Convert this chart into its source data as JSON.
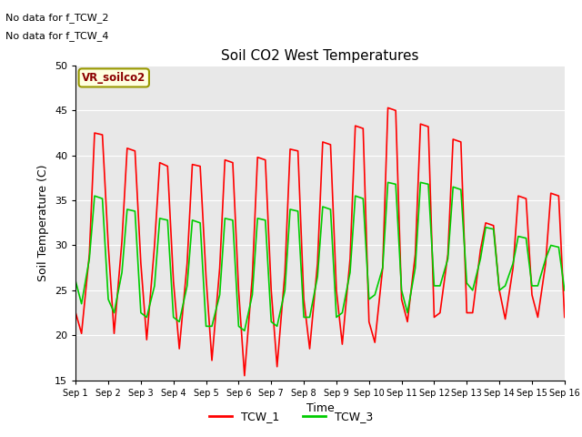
{
  "title": "Soil CO2 West Temperatures",
  "xlabel": "Time",
  "ylabel": "Soil Temperature (C)",
  "ylim": [
    15,
    50
  ],
  "xlim": [
    0,
    15
  ],
  "xtick_labels": [
    "Sep 1",
    "Sep 2",
    "Sep 3",
    "Sep 4",
    "Sep 5",
    "Sep 6",
    "Sep 7",
    "Sep 8",
    "Sep 9",
    "Sep 10",
    "Sep 11",
    "Sep 12",
    "Sep 13",
    "Sep 14",
    "Sep 15",
    "Sep 16"
  ],
  "no_data_text": [
    "No data for f_TCW_2",
    "No data for f_TCW_4"
  ],
  "vr_label": "VR_soilco2",
  "legend_entries": [
    "TCW_1",
    "TCW_3"
  ],
  "line_colors": [
    "#ff0000",
    "#00cc00"
  ],
  "background_color": "#e8e8e8",
  "tcw1_x": [
    0.0,
    0.18,
    0.42,
    0.58,
    0.82,
    1.0,
    1.18,
    1.42,
    1.58,
    1.82,
    2.0,
    2.18,
    2.42,
    2.58,
    2.82,
    3.0,
    3.18,
    3.42,
    3.58,
    3.82,
    4.0,
    4.18,
    4.42,
    4.58,
    4.82,
    5.0,
    5.18,
    5.42,
    5.58,
    5.82,
    6.0,
    6.18,
    6.42,
    6.58,
    6.82,
    7.0,
    7.18,
    7.42,
    7.58,
    7.82,
    8.0,
    8.18,
    8.42,
    8.58,
    8.82,
    9.0,
    9.18,
    9.42,
    9.58,
    9.82,
    10.0,
    10.18,
    10.42,
    10.58,
    10.82,
    11.0,
    11.18,
    11.42,
    11.58,
    11.82,
    12.0,
    12.18,
    12.42,
    12.58,
    12.82,
    13.0,
    13.18,
    13.42,
    13.58,
    13.82,
    14.0,
    14.18,
    14.42,
    14.58,
    14.82,
    15.0
  ],
  "tcw1_y": [
    22.5,
    20.2,
    29.0,
    42.5,
    42.3,
    30.0,
    20.2,
    30.5,
    40.8,
    40.5,
    28.0,
    19.5,
    30.0,
    39.2,
    38.8,
    26.0,
    18.5,
    28.0,
    39.0,
    38.8,
    26.5,
    17.2,
    27.5,
    39.5,
    39.2,
    25.0,
    15.5,
    26.5,
    39.8,
    39.5,
    25.0,
    16.5,
    27.0,
    40.7,
    40.5,
    24.0,
    18.5,
    28.0,
    41.5,
    41.2,
    25.0,
    19.0,
    28.5,
    43.3,
    43.0,
    21.5,
    19.2,
    27.5,
    45.3,
    45.0,
    24.0,
    21.5,
    29.0,
    43.5,
    43.2,
    22.0,
    22.5,
    29.0,
    41.8,
    41.5,
    22.5,
    22.5,
    29.5,
    32.5,
    32.2,
    25.0,
    21.8,
    27.5,
    35.5,
    35.2,
    24.5,
    22.0,
    28.0,
    35.8,
    35.5,
    22.0
  ],
  "tcw3_x": [
    0.0,
    0.18,
    0.42,
    0.58,
    0.82,
    1.0,
    1.18,
    1.42,
    1.58,
    1.82,
    2.0,
    2.18,
    2.42,
    2.58,
    2.82,
    3.0,
    3.18,
    3.42,
    3.58,
    3.82,
    4.0,
    4.18,
    4.42,
    4.58,
    4.82,
    5.0,
    5.18,
    5.42,
    5.58,
    5.82,
    6.0,
    6.18,
    6.42,
    6.58,
    6.82,
    7.0,
    7.18,
    7.42,
    7.58,
    7.82,
    8.0,
    8.18,
    8.42,
    8.58,
    8.82,
    9.0,
    9.18,
    9.42,
    9.58,
    9.82,
    10.0,
    10.18,
    10.42,
    10.58,
    10.82,
    11.0,
    11.18,
    11.42,
    11.58,
    11.82,
    12.0,
    12.18,
    12.42,
    12.58,
    12.82,
    13.0,
    13.18,
    13.42,
    13.58,
    13.82,
    14.0,
    14.18,
    14.42,
    14.58,
    14.82,
    15.0
  ],
  "tcw3_y": [
    26.0,
    23.5,
    28.5,
    35.5,
    35.2,
    24.0,
    22.5,
    27.0,
    34.0,
    33.8,
    22.5,
    22.0,
    25.5,
    33.0,
    32.8,
    22.0,
    21.5,
    25.5,
    32.8,
    32.5,
    21.0,
    21.0,
    24.5,
    33.0,
    32.8,
    21.0,
    20.5,
    24.5,
    33.0,
    32.8,
    21.5,
    21.0,
    25.0,
    34.0,
    33.8,
    22.0,
    22.0,
    26.5,
    34.3,
    34.0,
    22.0,
    22.5,
    27.0,
    35.5,
    35.2,
    24.0,
    24.5,
    27.5,
    37.0,
    36.8,
    25.0,
    22.5,
    27.5,
    37.0,
    36.8,
    25.5,
    25.5,
    28.5,
    36.5,
    36.2,
    25.8,
    25.0,
    28.5,
    32.0,
    31.8,
    25.0,
    25.5,
    28.0,
    31.0,
    30.8,
    25.5,
    25.5,
    28.5,
    30.0,
    29.8,
    25.0
  ]
}
